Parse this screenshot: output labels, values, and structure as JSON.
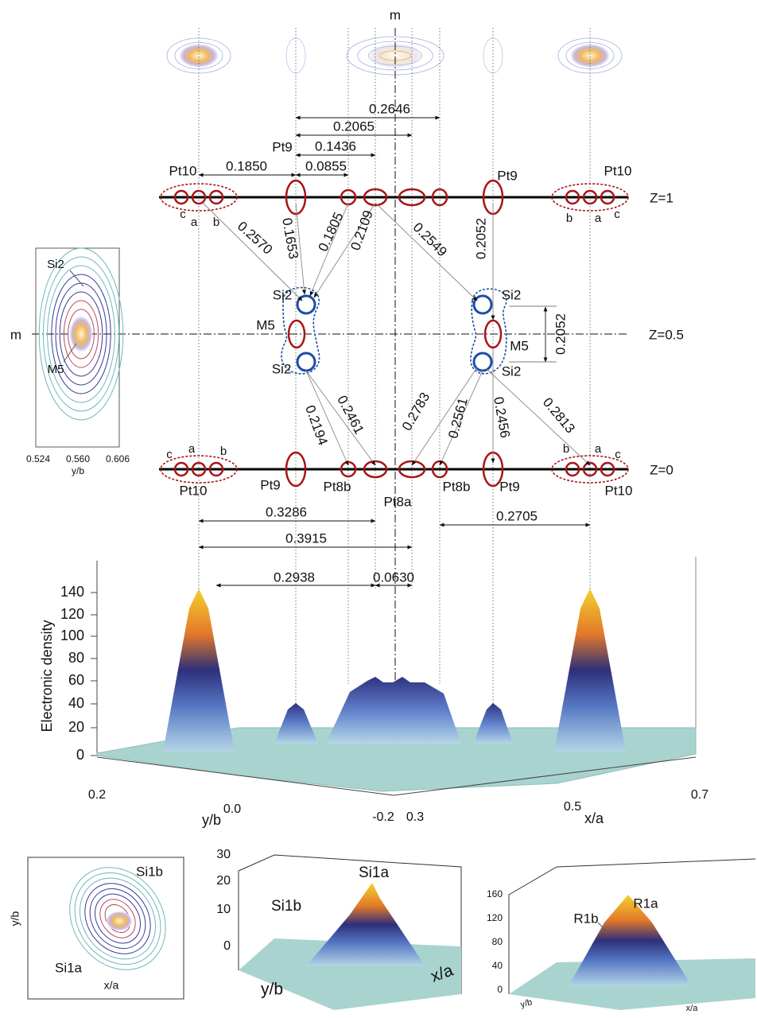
{
  "mirror_labels": {
    "top": "m",
    "left": "m"
  },
  "layers": {
    "z1": "Z=1",
    "z05": "Z=0.5",
    "z0": "Z=0"
  },
  "top_row": {
    "labels": [
      "Pt10",
      "Pt9",
      "Pt9",
      "Pt10"
    ],
    "sites_left": [
      "c",
      "a",
      "b"
    ],
    "sites_right": [
      "b",
      "a",
      "c"
    ]
  },
  "top_distances": [
    "0.2646",
    "0.2065",
    "0.1436",
    "0.0855",
    "0.1850"
  ],
  "upper_bonds": [
    "0.2570",
    "0.1653",
    "0.1805",
    "0.2109",
    "0.2549",
    "0.2052"
  ],
  "middle": {
    "left": [
      "Si2",
      "M5",
      "Si2"
    ],
    "right": [
      "Si2",
      "M5",
      "Si2"
    ],
    "height": "0.2052"
  },
  "lower_bonds": [
    "0.2194",
    "0.2461",
    "0.2783",
    "0.2561",
    "0.2456",
    "0.2813"
  ],
  "bottom_row": {
    "sites_left": [
      "c",
      "a",
      "b"
    ],
    "sites_right": [
      "b",
      "a",
      "c"
    ],
    "labels": [
      "Pt10",
      "Pt9",
      "Pt8b",
      "Pt8a",
      "Pt8b",
      "Pt9",
      "Pt10"
    ]
  },
  "bottom_distances": [
    "0.3286",
    "0.3915",
    "0.2705",
    "0.2938",
    "0.0630"
  ],
  "inset": {
    "labels": [
      "Si2",
      "M5"
    ],
    "ticks": [
      "0.524",
      "0.560",
      "0.606"
    ],
    "axis": "y/b"
  },
  "density_plot": {
    "axis_label": "Electronic density",
    "zticks": [
      "0",
      "20",
      "40",
      "60",
      "80",
      "100",
      "120",
      "140"
    ],
    "y_ticks": [
      "0.2",
      "0.0",
      "-0.2"
    ],
    "y_label": "y/b",
    "x_ticks": [
      "0.3",
      "0.5",
      "0.7"
    ],
    "x_label": "x/a"
  },
  "panels": [
    {
      "y_label": "y/b",
      "x_label": "x/a",
      "labels": [
        "Si1b",
        "Si1a"
      ]
    },
    {
      "zticks": [
        "30",
        "20",
        "10",
        "0"
      ],
      "labels": [
        "Si1a",
        "Si1b"
      ],
      "y_label": "y/b",
      "x_label": "x/a"
    },
    {
      "zticks": [
        "160",
        "120",
        "80",
        "40",
        "0"
      ],
      "labels": [
        "R1b",
        "R1a"
      ],
      "y_label": "y/b",
      "x_label": "x/a"
    }
  ]
}
